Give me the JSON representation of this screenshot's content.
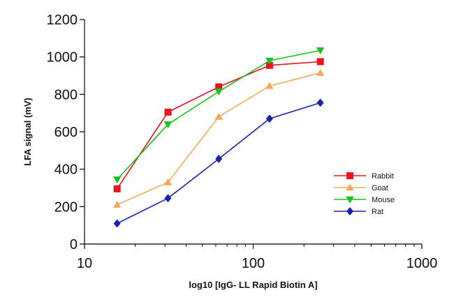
{
  "chart_data": {
    "type": "line",
    "title": "",
    "xlabel": "log10 [IgG- LL Rapid Biotin A]",
    "ylabel": "LFA signal (mV)",
    "xscale": "log",
    "xlim": [
      10,
      1000
    ],
    "ylim": [
      0,
      1200
    ],
    "xticks": [
      10,
      100,
      1000
    ],
    "xtick_labels": [
      "10",
      "100",
      "1000"
    ],
    "yticks": [
      0,
      200,
      400,
      600,
      800,
      1000,
      1200
    ],
    "ytick_labels": [
      "0",
      "200",
      "400",
      "600",
      "800",
      "1000",
      "1200"
    ],
    "grid": false,
    "legend_position": "right",
    "x": [
      15.6,
      31.25,
      62.5,
      125,
      250
    ],
    "series": [
      {
        "name": "Rabbit",
        "marker": "square",
        "color": "#e8141e",
        "values": [
          295,
          705,
          840,
          955,
          975
        ]
      },
      {
        "name": "Goat",
        "marker": "triangle-up",
        "color": "#f4a95a",
        "values": [
          210,
          330,
          680,
          845,
          915
        ]
      },
      {
        "name": "Mouse",
        "marker": "triangle-down",
        "color": "#1fbf1f",
        "values": [
          345,
          640,
          815,
          980,
          1035
        ]
      },
      {
        "name": "Rat",
        "marker": "diamond",
        "color": "#1a23a8",
        "values": [
          110,
          245,
          455,
          670,
          755
        ]
      }
    ]
  }
}
